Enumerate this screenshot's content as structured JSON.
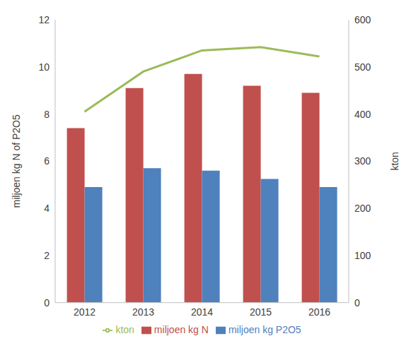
{
  "chart_data": {
    "type": "bar",
    "categories": [
      "2012",
      "2013",
      "2014",
      "2015",
      "2016"
    ],
    "series": [
      {
        "name": "miljoen kg N",
        "color": "#c0504d",
        "values": [
          7.4,
          9.1,
          9.7,
          9.2,
          8.9
        ]
      },
      {
        "name": "miljoen kg P2O5",
        "color": "#4f81bd",
        "values": [
          4.9,
          5.7,
          5.6,
          5.25,
          4.9
        ]
      },
      {
        "name": "kton",
        "type": "line",
        "axis": "y2",
        "color": "#9bbb59",
        "marker": "none",
        "values": [
          405,
          490,
          535,
          542,
          522
        ]
      }
    ],
    "ylabel": "miljoen kg N of P2O5",
    "y2label": "kton",
    "ylim": [
      0,
      12
    ],
    "yticks": [
      0,
      2,
      4,
      6,
      8,
      10,
      12
    ],
    "y2lim": [
      0,
      600
    ],
    "y2ticks": [
      0,
      100,
      200,
      300,
      400,
      500,
      600
    ],
    "grid": false,
    "legend": "bottom"
  }
}
